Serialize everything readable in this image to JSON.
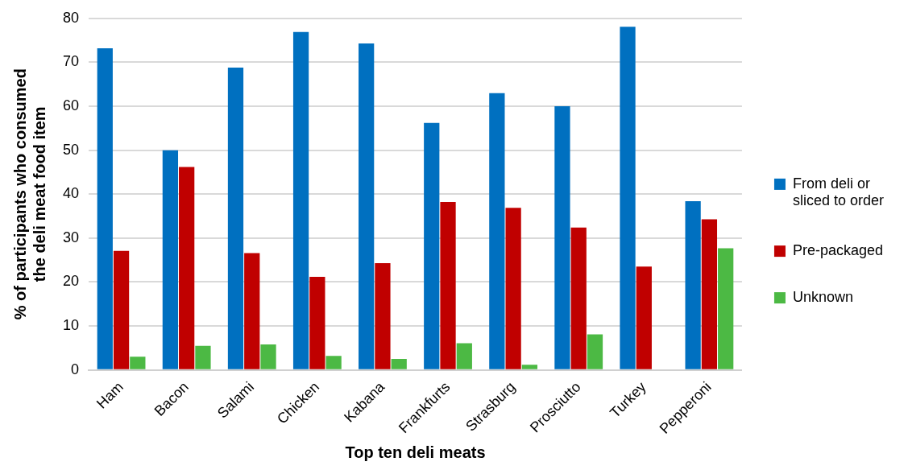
{
  "chart_data": {
    "type": "bar",
    "xlabel": "Top ten deli meats",
    "ylabel": "% of participants who consumed the deli meat food item",
    "categories": [
      "Ham",
      "Bacon",
      "Salami",
      "Chicken",
      "Kabana",
      "Frankfurts",
      "Strasburg",
      "Prosciutto",
      "Turkey",
      "Pepperoni"
    ],
    "series": [
      {
        "name": "From deli or sliced to order",
        "color": "#0070c0",
        "values": [
          73.2,
          50,
          68.8,
          76.9,
          74.3,
          56.2,
          63,
          60,
          78.1,
          38.4
        ]
      },
      {
        "name": "Pre-packaged",
        "color": "#c00000",
        "values": [
          27.1,
          46.2,
          26.6,
          21.2,
          24.3,
          38.2,
          36.9,
          32.4,
          23.5,
          34.3
        ]
      },
      {
        "name": "Unknown",
        "color": "#4cb944",
        "values": [
          3,
          5.5,
          5.8,
          3.2,
          2.5,
          6.1,
          1.2,
          8.1,
          null,
          27.7
        ]
      }
    ],
    "ylim": [
      0,
      80
    ],
    "yticks": [
      0,
      10,
      20,
      30,
      40,
      50,
      60,
      70,
      80
    ],
    "grid": "y",
    "legend": "right"
  }
}
